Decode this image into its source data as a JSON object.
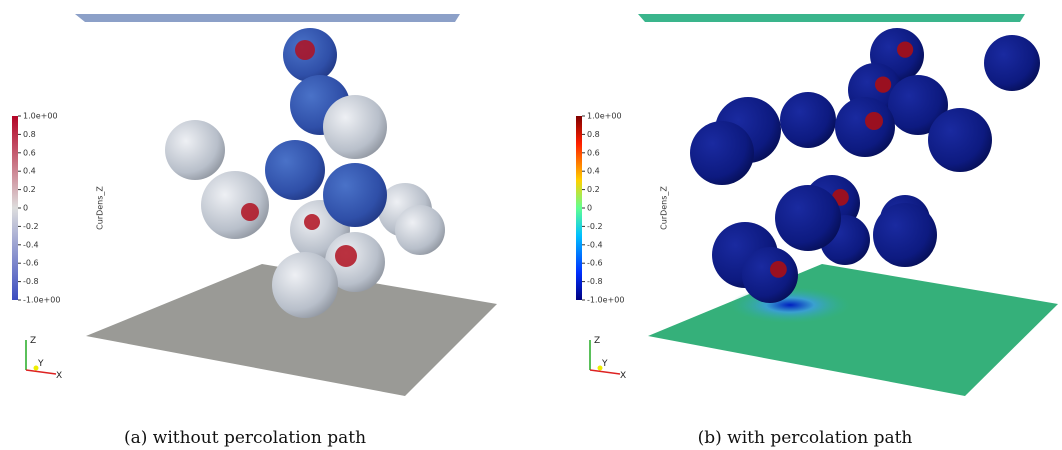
{
  "panels": [
    {
      "caption": "(a)  without percolation path",
      "colorbar": {
        "title": "CurDens_Z",
        "ticks": [
          "1.0e+00",
          "0.8",
          "0.6",
          "0.4",
          "0.2",
          "0",
          "-0.2",
          "-0.4",
          "-0.6",
          "-0.8",
          "-1.0e+00"
        ]
      },
      "axes": {
        "z": "Z",
        "y": "Y",
        "x": "X"
      }
    },
    {
      "caption": "(b)  with percolation path",
      "colorbar": {
        "title": "CurDens_Z",
        "ticks": [
          "1.0e+00",
          "0.8",
          "0.6",
          "0.4",
          "0.2",
          "0",
          "-0.2",
          "-0.4",
          "-0.6",
          "-0.8",
          "-1.0e+00"
        ]
      },
      "axes": {
        "z": "Z",
        "y": "Y",
        "x": "X"
      }
    }
  ]
}
